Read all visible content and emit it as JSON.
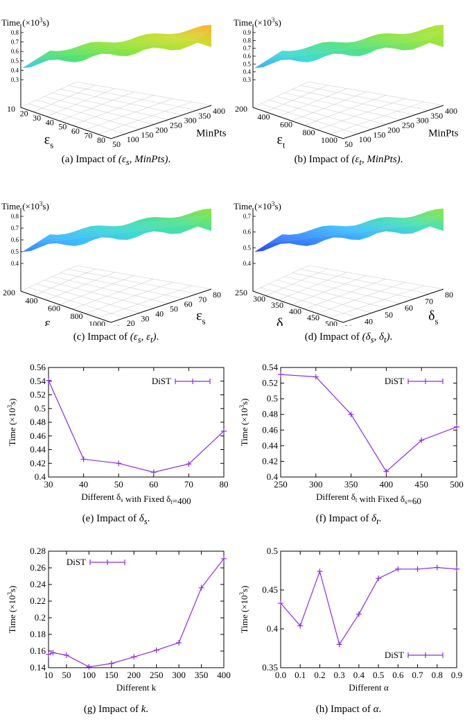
{
  "panels3d": [
    {
      "id": "a",
      "z_label_prefix": "Time (×10",
      "z_label_sup": "3",
      "z_label_suffix": "s)",
      "z_ticks": [
        "0.8",
        "0.7",
        "0.6",
        "0.5",
        "0.4",
        "0.3"
      ],
      "left_axis_ticks": [
        "10",
        "20",
        "30",
        "40",
        "50",
        "60",
        "70",
        "80"
      ],
      "left_axis_label": "ε",
      "left_axis_sub": "s",
      "right_axis_ticks": [
        "50",
        "100",
        "150",
        "200",
        "250",
        "300",
        "350",
        "400"
      ],
      "right_axis_label": "MinPts",
      "right_axis_sub": "",
      "caption_prefix": "(a)  Impact of ",
      "caption_math": "(ε",
      "caption_math_sub": "s",
      "caption_math_rest": ", MinPts)",
      "caption_suffix": ".",
      "colors": [
        "#38c7ff",
        "#49e06b",
        "#8de234",
        "#c8dc28",
        "#ffae2a"
      ]
    },
    {
      "id": "b",
      "z_label_prefix": "Time (×10",
      "z_label_sup": "3",
      "z_label_suffix": "s)",
      "z_ticks": [
        "0.9",
        "0.8",
        "0.7",
        "0.6",
        "0.5",
        "0.4",
        "0.3"
      ],
      "left_axis_ticks": [
        "200",
        "400",
        "600",
        "800",
        "1000"
      ],
      "left_axis_label": "ε",
      "left_axis_sub": "t",
      "right_axis_ticks": [
        "50",
        "100",
        "150",
        "200",
        "250",
        "300",
        "350",
        "400"
      ],
      "right_axis_label": "MinPts",
      "right_axis_sub": "",
      "caption_prefix": "(b)  Impact of ",
      "caption_math": "(ε",
      "caption_math_sub": "t",
      "caption_math_rest": ", MinPts)",
      "caption_suffix": ".",
      "colors": [
        "#3aa8ff",
        "#38d8d0",
        "#4ae07a",
        "#8fe43c",
        "#b6e030"
      ]
    },
    {
      "id": "c",
      "z_label_prefix": "Time (×10",
      "z_label_sup": "3",
      "z_label_suffix": "s)",
      "z_ticks": [
        "0.8",
        "0.7",
        "0.6",
        "0.5",
        "0.4"
      ],
      "left_axis_ticks": [
        "200",
        "400",
        "600",
        "800",
        "1000"
      ],
      "left_axis_label": "ε",
      "left_axis_sub": "t",
      "right_axis_ticks": [
        "10",
        "20",
        "30",
        "40",
        "50",
        "60",
        "70",
        "80"
      ],
      "right_axis_label": "ε",
      "right_axis_sub": "s",
      "caption_prefix": "(c)  Impact of ",
      "caption_math": "(ε",
      "caption_math_sub": "s",
      "caption_math_rest": ", ε",
      "caption_math_sub2": "t",
      "caption_math_end": ")",
      "caption_suffix": ".",
      "colors": [
        "#2f7dff",
        "#34b5ff",
        "#36d6d4",
        "#46e08c",
        "#8de23a"
      ]
    },
    {
      "id": "d",
      "z_label_prefix": "Time (×10",
      "z_label_sup": "3",
      "z_label_suffix": "s)",
      "z_ticks": [
        "0.7",
        "0.6",
        "0.5",
        "0.4"
      ],
      "left_axis_ticks": [
        "250",
        "300",
        "350",
        "400",
        "450",
        "500"
      ],
      "left_axis_label": "δ",
      "left_axis_sub": "t",
      "right_axis_ticks": [
        "30",
        "40",
        "50",
        "60",
        "70",
        "80"
      ],
      "right_axis_label": "δ",
      "right_axis_sub": "s",
      "caption_prefix": "(d)  Impact of ",
      "caption_math": "(δ",
      "caption_math_sub": "s",
      "caption_math_rest": ", δ",
      "caption_math_sub2": "t",
      "caption_math_end": ")",
      "caption_suffix": ".",
      "colors": [
        "#2340e8",
        "#2f7dff",
        "#36b8ff",
        "#40e0b0",
        "#8de23a"
      ]
    }
  ],
  "chart_data": [
    {
      "id": "e",
      "type": "line",
      "x": [
        30,
        40,
        50,
        60,
        70,
        80
      ],
      "series": [
        {
          "name": "DiST",
          "values": [
            0.541,
            0.426,
            0.42,
            0.407,
            0.419,
            0.467
          ]
        }
      ],
      "xlim": [
        30,
        80
      ],
      "ylim": [
        0.4,
        0.56
      ],
      "xticks": [
        30,
        40,
        50,
        60,
        70,
        80
      ],
      "yticks": [
        0.4,
        0.42,
        0.44,
        0.46,
        0.48,
        0.5,
        0.52,
        0.54,
        0.56
      ],
      "xlabel": "Different δs with Fixed δt=400",
      "ylabel": "Time (×10³s)",
      "legend": "top-right",
      "caption": "(e)  Impact of δs."
    },
    {
      "id": "f",
      "type": "line",
      "x": [
        250,
        300,
        350,
        400,
        450,
        500
      ],
      "series": [
        {
          "name": "DiST",
          "values": [
            0.531,
            0.528,
            0.48,
            0.407,
            0.447,
            0.464
          ]
        }
      ],
      "xlim": [
        250,
        500
      ],
      "ylim": [
        0.4,
        0.54
      ],
      "xticks": [
        250,
        300,
        350,
        400,
        450,
        500
      ],
      "yticks": [
        0.4,
        0.42,
        0.44,
        0.46,
        0.48,
        0.5,
        0.52,
        0.54
      ],
      "xlabel": "Different δt with Fixed δs=60",
      "ylabel": "Time (×10³s)",
      "legend": "top-right",
      "caption": "(f)  Impact of δt."
    },
    {
      "id": "g",
      "type": "line",
      "x": [
        10,
        20,
        50,
        100,
        150,
        200,
        250,
        300,
        350,
        400
      ],
      "series": [
        {
          "name": "DiST",
          "values": [
            0.156,
            0.158,
            0.155,
            0.141,
            0.145,
            0.153,
            0.161,
            0.17,
            0.236,
            0.271
          ]
        }
      ],
      "xlim": [
        10,
        400
      ],
      "ylim": [
        0.14,
        0.28
      ],
      "xticks": [
        10,
        50,
        100,
        150,
        200,
        250,
        300,
        350,
        400
      ],
      "yticks": [
        0.14,
        0.16,
        0.18,
        0.2,
        0.22,
        0.24,
        0.26,
        0.28
      ],
      "xlabel": "Different k",
      "ylabel": "Time (×10³s)",
      "legend": "top-left",
      "caption": "(g)  Impact of k."
    },
    {
      "id": "h",
      "type": "line",
      "x": [
        0.0,
        0.1,
        0.2,
        0.3,
        0.4,
        0.5,
        0.6,
        0.7,
        0.8,
        0.9
      ],
      "series": [
        {
          "name": "DiST",
          "values": [
            0.433,
            0.404,
            0.474,
            0.38,
            0.419,
            0.465,
            0.477,
            0.477,
            0.479,
            0.477
          ]
        }
      ],
      "xlim": [
        0.0,
        0.9
      ],
      "ylim": [
        0.35,
        0.5
      ],
      "xticks": [
        0.0,
        0.1,
        0.2,
        0.3,
        0.4,
        0.5,
        0.6,
        0.7,
        0.8,
        0.9
      ],
      "yticks": [
        0.35,
        0.4,
        0.45,
        0.5
      ],
      "xlabel": "Different α",
      "ylabel": "Time (×10³s)",
      "legend": "bottom-right",
      "caption": "(h)  Impact of α."
    }
  ],
  "line_color": "#8a2be2"
}
